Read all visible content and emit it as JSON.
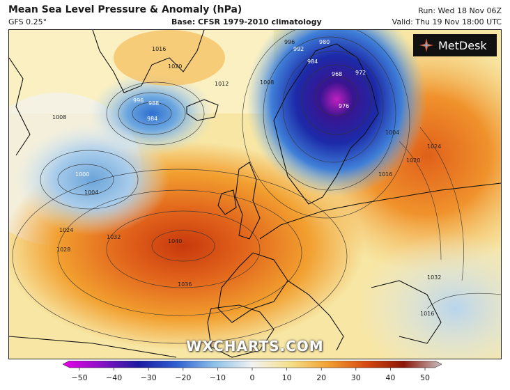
{
  "header": {
    "title": "Mean Sea Level Pressure & Anomaly (hPa)",
    "model": "GFS 0.25°",
    "base": "Base: CFSR 1979-2010 climatology",
    "run": "Run: Wed 18 Nov 06Z",
    "valid": "Valid: Thu 19 Nov 18:00 UTC"
  },
  "logo": {
    "text": "MetDesk",
    "icon": "metdesk-logo-icon"
  },
  "watermark": "WXCHARTS.COM",
  "map": {
    "region": "North Atlantic and Europe",
    "low_centres": [
      {
        "label": "968",
        "near": "Scandinavia"
      },
      {
        "label": "972",
        "near": "Scandinavia"
      },
      {
        "label": "976",
        "near": "Scandinavia"
      },
      {
        "label": "984",
        "near": "Iceland"
      },
      {
        "label": "988",
        "near": "Iceland"
      },
      {
        "label": "996",
        "near": "Iceland"
      },
      {
        "label": "1000",
        "near": "Labrador Sea"
      }
    ],
    "high_centres": [
      {
        "label": "1040",
        "near": "West of France"
      }
    ],
    "contour_labels": [
      "1000",
      "1004",
      "1008",
      "1012",
      "1016",
      "1020",
      "1024",
      "1028",
      "1032",
      "1036",
      "1040",
      "992",
      "984",
      "980",
      "996",
      "1004",
      "1008",
      "1012",
      "1016",
      "1020",
      "1024",
      "1032",
      "1016",
      "1012"
    ]
  },
  "colorbar": {
    "ticks": [
      "−50",
      "−40",
      "−30",
      "−20",
      "−10",
      "0",
      "10",
      "20",
      "30",
      "40",
      "50"
    ],
    "colors": [
      "#e800e8",
      "#8a10c8",
      "#1a1aa0",
      "#2f5fd0",
      "#8cc0e8",
      "#f2f2f2",
      "#f5e08a",
      "#f2a030",
      "#d84a10",
      "#8a1608",
      "#c8c0c0"
    ]
  }
}
